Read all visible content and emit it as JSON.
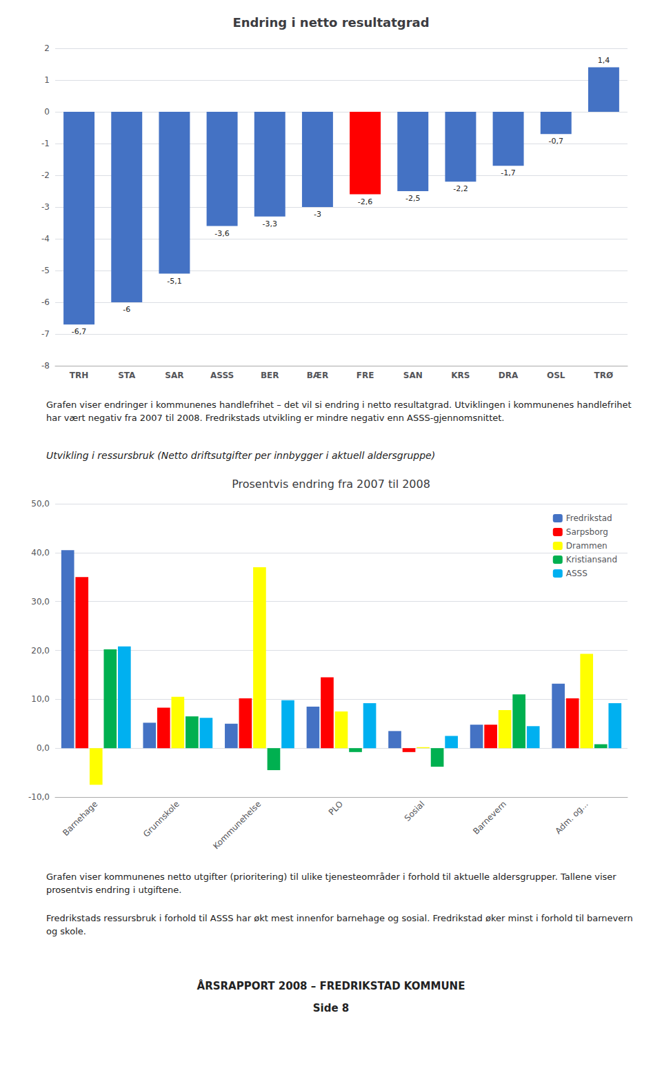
{
  "chart_data": [
    {
      "type": "bar",
      "title": "Endring i netto resultatgrad",
      "categories": [
        "TRH",
        "STA",
        "SAR",
        "ASSS",
        "BER",
        "BÆR",
        "FRE",
        "SAN",
        "KRS",
        "DRA",
        "OSL",
        "TRØ"
      ],
      "values": [
        -6.7,
        -6.0,
        -5.1,
        -3.6,
        -3.3,
        -3.0,
        -2.6,
        -2.5,
        -2.2,
        -1.7,
        -0.7,
        1.4
      ],
      "value_labels": [
        "-6,7",
        "-6",
        "-5,1",
        "-3,6",
        "-3,3",
        "-3",
        "-2,6",
        "-2,5",
        "-2,2",
        "-1,7",
        "-0,7",
        "1,4"
      ],
      "colors": [
        "#4472C4",
        "#4472C4",
        "#4472C4",
        "#4472C4",
        "#4472C4",
        "#4472C4",
        "#FF0000",
        "#4472C4",
        "#4472C4",
        "#4472C4",
        "#4472C4",
        "#4472C4"
      ],
      "data_labels": true,
      "ylim": [
        -8,
        2
      ],
      "yticks": [
        -8,
        -7,
        -6,
        -5,
        -4,
        -3,
        -2,
        -1,
        0,
        1,
        2
      ],
      "grid": true,
      "annotations": [
        "Grafen viser endringer i kommunenes handlefrihet – det vil si endring i netto resultatgrad. Utviklingen i kommunenes handlefrihet har vært negativ fra 2007 til 2008. Fredrikstads utvikling er mindre negativ enn ASSS-gjennomsnittet."
      ]
    },
    {
      "type": "bar",
      "title": "Prosentvis endring fra 2007 til 2008",
      "subtitle": "Utvikling i ressursbruk (Netto driftsutgifter per innbygger i aktuell aldersgruppe)",
      "categories": [
        "Barnehage",
        "Grunnskole",
        "Kommunehelse",
        "PLO",
        "Sosial",
        "Barnevern",
        "Adm. og..."
      ],
      "series": [
        {
          "name": "Fredrikstad",
          "color": "#4472C4",
          "values": [
            40.5,
            5.2,
            5.0,
            8.5,
            3.5,
            4.8,
            13.2
          ]
        },
        {
          "name": "Sarpsborg",
          "color": "#FF0000",
          "values": [
            35.0,
            8.3,
            10.2,
            14.5,
            -0.8,
            4.8,
            10.2
          ]
        },
        {
          "name": "Drammen",
          "color": "#FFFF00",
          "values": [
            -7.5,
            10.5,
            37.0,
            7.5,
            0.2,
            7.8,
            19.3
          ]
        },
        {
          "name": "Kristiansand",
          "color": "#00B050",
          "values": [
            20.2,
            6.5,
            -4.5,
            -0.8,
            -3.8,
            11.0,
            0.8
          ]
        },
        {
          "name": "ASSS",
          "color": "#00B0F0",
          "values": [
            20.8,
            6.2,
            9.8,
            9.2,
            2.5,
            4.5,
            9.2
          ]
        }
      ],
      "ylim": [
        -10,
        50
      ],
      "yticks": [
        {
          "value": -10,
          "label": "-10,0"
        },
        {
          "value": 0,
          "label": "0,0"
        },
        {
          "value": 10,
          "label": "10,0"
        },
        {
          "value": 20,
          "label": "20,0"
        },
        {
          "value": 30,
          "label": "30,0"
        },
        {
          "value": 40,
          "label": "40,0"
        },
        {
          "value": 50,
          "label": "50,0"
        }
      ],
      "grid": true,
      "legend": "upper right",
      "annotations": [
        "Grafen viser kommunenes netto utgifter (prioritering) til ulike tjenesteområder i forhold til aktuelle aldersgrupper. Tallene viser prosentvis endring i utgiftene.",
        "Fredrikstads ressursbruk i forhold til ASSS har økt mest innenfor barnehage og sosial. Fredrikstad øker minst i forhold til barnevern og skole.",
        "ÅRSRAPPORT 2008 – FREDRIKSTAD KOMMUNE",
        "Side 8"
      ]
    }
  ]
}
